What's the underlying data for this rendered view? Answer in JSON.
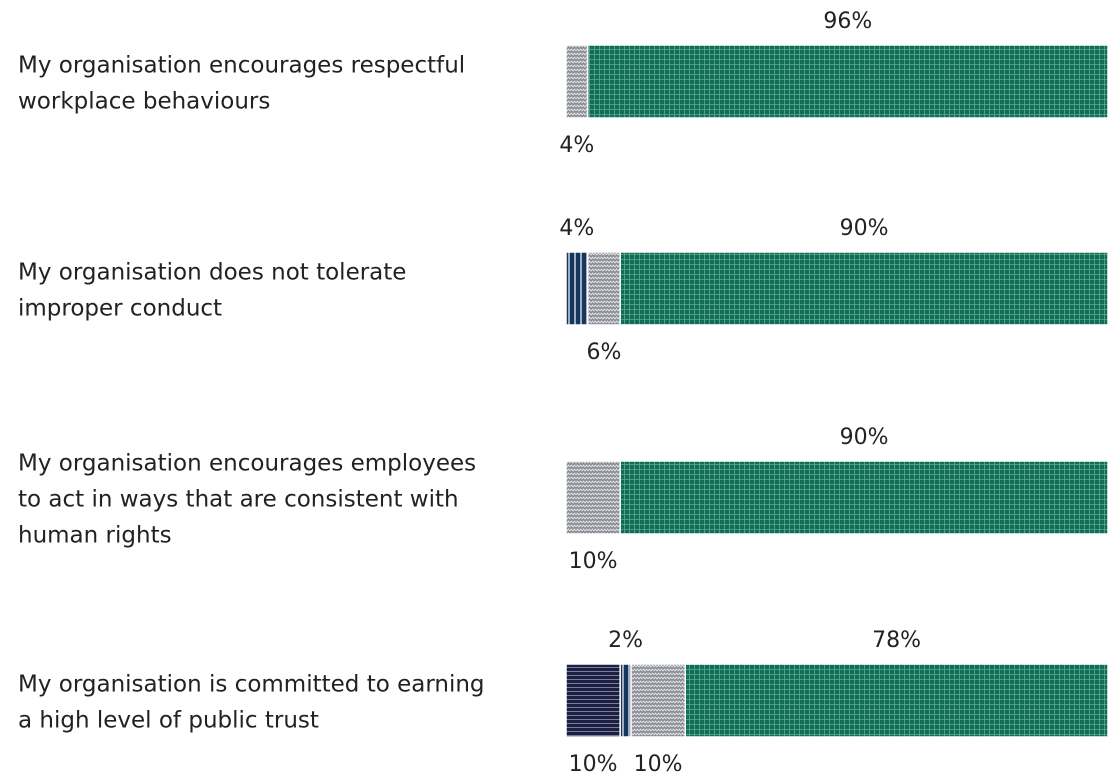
{
  "chart_data": {
    "type": "bar",
    "orientation": "horizontal",
    "stacked": true,
    "xlim": [
      0,
      100
    ],
    "grid": false,
    "legend": "none",
    "categories": [
      "My organisation encourages respectful workplace behaviours",
      "My organisation does not tolerate improper conduct",
      "My organisation encourages employees to act in ways that are consistent with human rights",
      "My organisation is committed to earning a high level of public trust"
    ],
    "category_lines": [
      [
        "My organisation encourages respectful",
        "workplace behaviours"
      ],
      [
        "My organisation does not tolerate",
        "improper conduct"
      ],
      [
        "My organisation encourages employees",
        "to act in ways that are consistent with",
        "human rights"
      ],
      [
        "My organisation is committed to earning",
        "a high level of public trust"
      ]
    ],
    "series": [
      {
        "color": "#1c1f3f",
        "pattern": "horizontal-lines",
        "values": [
          0,
          0,
          0,
          10
        ]
      },
      {
        "color": "#15365e",
        "pattern": "vertical-lines",
        "values": [
          0,
          4,
          0,
          2
        ]
      },
      {
        "color": "#8a8d94",
        "pattern": "zigzag",
        "values": [
          4,
          6,
          10,
          10
        ]
      },
      {
        "color": "#0f6e55",
        "pattern": "grid",
        "values": [
          96,
          90,
          90,
          78
        ]
      }
    ],
    "value_labels": [
      {
        "series": 3,
        "category": 0,
        "text": "96%",
        "position": "above"
      },
      {
        "series": 2,
        "category": 0,
        "text": "4%",
        "position": "below"
      },
      {
        "series": 1,
        "category": 1,
        "text": "4%",
        "position": "above"
      },
      {
        "series": 3,
        "category": 1,
        "text": "90%",
        "position": "above"
      },
      {
        "series": 2,
        "category": 1,
        "text": "6%",
        "position": "below"
      },
      {
        "series": 3,
        "category": 2,
        "text": "90%",
        "position": "above"
      },
      {
        "series": 2,
        "category": 2,
        "text": "10%",
        "position": "below"
      },
      {
        "series": 1,
        "category": 3,
        "text": "2%",
        "position": "above"
      },
      {
        "series": 3,
        "category": 3,
        "text": "78%",
        "position": "above"
      },
      {
        "series": 0,
        "category": 3,
        "text": "10%",
        "position": "below"
      },
      {
        "series": 2,
        "category": 3,
        "text": "10%",
        "position": "below"
      }
    ]
  }
}
